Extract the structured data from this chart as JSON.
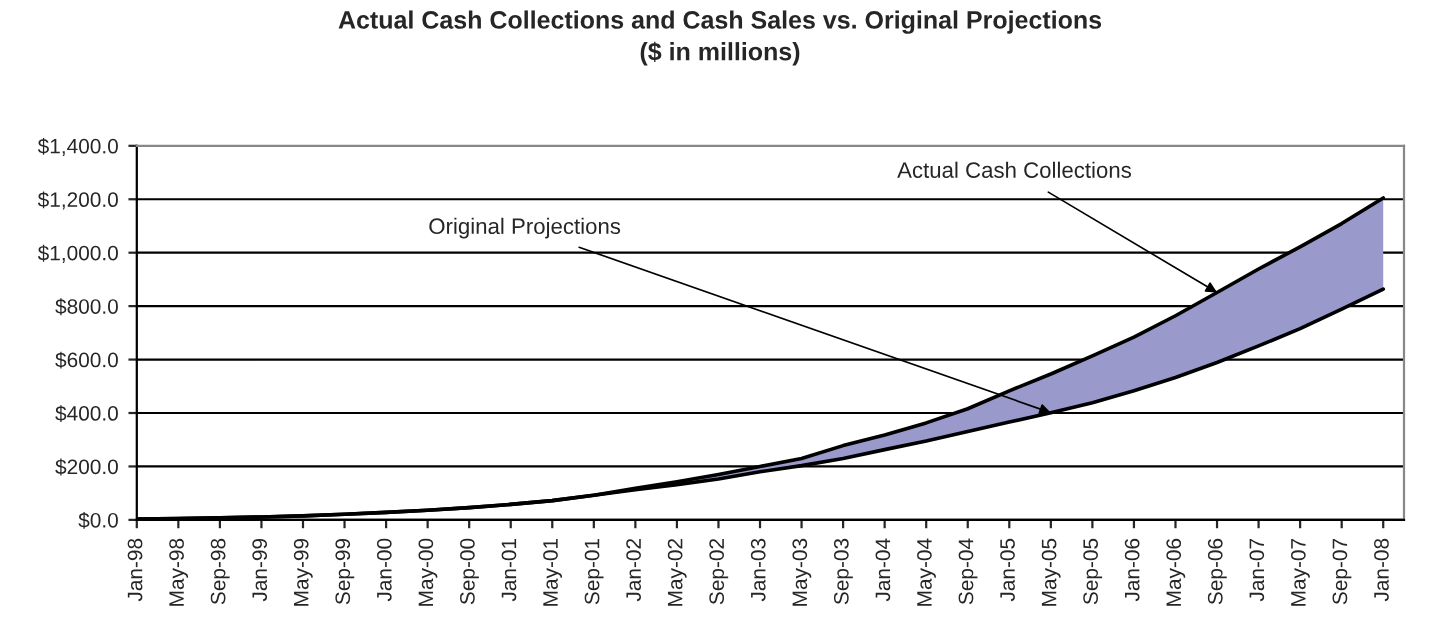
{
  "chart_data": {
    "type": "line",
    "title": "Actual Cash Collections and Cash Sales vs. Original Projections",
    "subtitle": "($ in millions)",
    "categories": [
      "Jan-98",
      "May-98",
      "Sep-98",
      "Jan-99",
      "May-99",
      "Sep-99",
      "Jan-00",
      "May-00",
      "Sep-00",
      "Jan-01",
      "May-01",
      "Sep-01",
      "Jan-02",
      "May-02",
      "Sep-02",
      "Jan-03",
      "May-03",
      "Sep-03",
      "Jan-04",
      "May-04",
      "Sep-04",
      "Jan-05",
      "May-05",
      "Sep-05",
      "Jan-06",
      "May-06",
      "Sep-06",
      "Jan-07",
      "May-07",
      "Sep-07",
      "Jan-08"
    ],
    "series": [
      {
        "color": "#000000",
        "values": [
          3,
          5,
          8,
          11,
          15,
          21,
          28,
          36,
          46,
          58,
          72,
          92,
          113,
          132,
          153,
          180,
          203,
          230,
          263,
          295,
          331,
          366,
          401,
          438,
          483,
          533,
          589,
          651,
          716,
          789,
          864
        ]
      },
      {
        "type": "area",
        "color": "#9999cc",
        "values": [
          3,
          5,
          8,
          11,
          15,
          21,
          28,
          36,
          46,
          58,
          72,
          92,
          118,
          143,
          170,
          200,
          230,
          278,
          318,
          363,
          416,
          483,
          546,
          614,
          684,
          764,
          851,
          939,
          1022,
          1109,
          1205
        ]
      }
    ],
    "ylim": [
      0,
      1400
    ],
    "yticks": [
      {
        "value": 0,
        "label": "$0.0"
      },
      {
        "value": 200,
        "label": "$200.0"
      },
      {
        "value": 400,
        "label": "$400.0"
      },
      {
        "value": 600,
        "label": "$600.0"
      },
      {
        "value": 800,
        "label": "$800.0"
      },
      {
        "value": 1000,
        "label": "$1,000.0"
      },
      {
        "value": 1200,
        "label": "$1,200.0"
      },
      {
        "value": 1400,
        "label": "$1,400.0"
      }
    ],
    "grid": "y",
    "annotations": [
      {
        "text": "Actual Cash Collections",
        "x": "Sep-06",
        "y": 851
      },
      {
        "text": "Original Projections",
        "x": "May-05",
        "y": 401
      }
    ]
  }
}
